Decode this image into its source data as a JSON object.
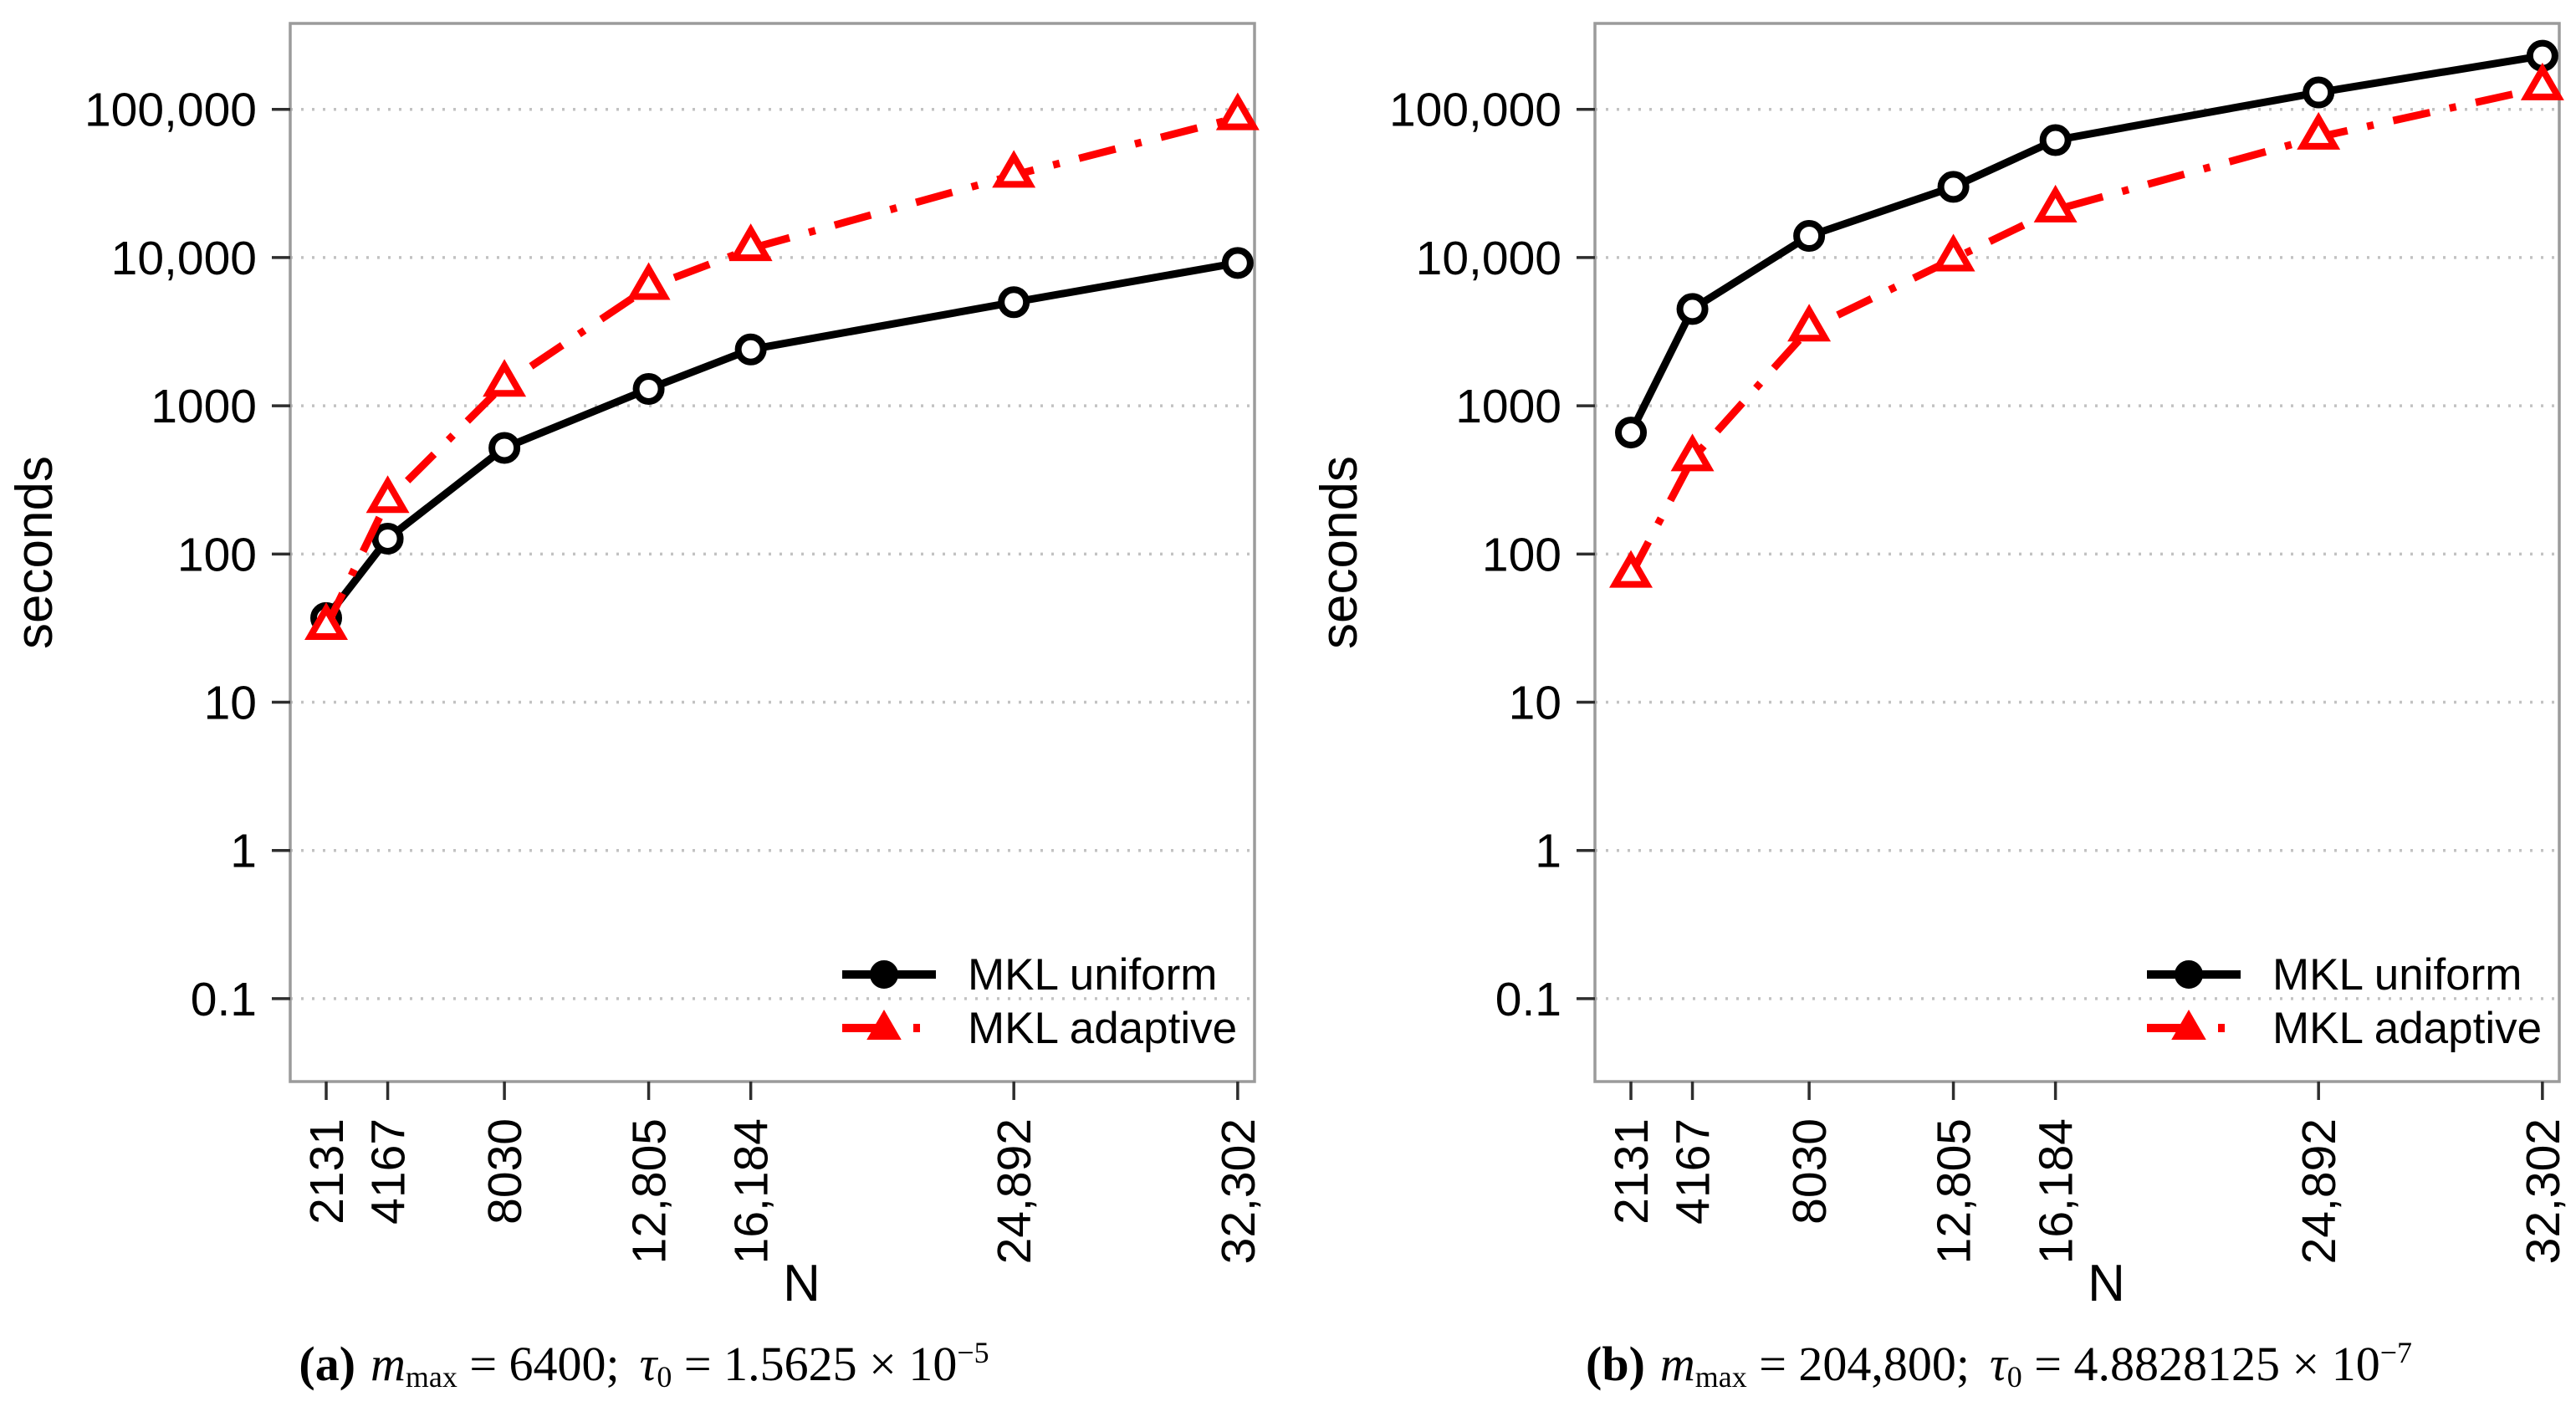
{
  "figure": {
    "background": "#ffffff",
    "colors": {
      "uniform": "#000000",
      "adaptive": "#ff0000",
      "grid": "#c2c2c2",
      "frame": "#9b9b9b",
      "tick": "#2e2e2e",
      "text": "#000000"
    }
  },
  "chart_data": [
    {
      "id": "a",
      "type": "line",
      "title": "(a) m_max = 6400; tau_0 = 1.5625 x 10^-5",
      "xlabel": "N",
      "ylabel": "seconds",
      "xscale": "linear",
      "yscale": "log",
      "grid": "horizontal-dotted",
      "legend_position": "bottom-right",
      "x": [
        2131,
        4167,
        8030,
        12805,
        16184,
        24892,
        32302
      ],
      "x_tick_labels": [
        "2131",
        "4167",
        "8030",
        "12,805",
        "16,184",
        "24,892",
        "32,302"
      ],
      "y_ticks": [
        100000,
        10000,
        1000,
        100,
        10,
        1,
        0.1
      ],
      "y_tick_labels": [
        "100,000",
        "10,000",
        "1000",
        "100",
        "10",
        "1",
        "0.1"
      ],
      "xlim": [
        940,
        32860
      ],
      "ylim": [
        0.0276,
        380000
      ],
      "series": [
        {
          "name": "MKL uniform",
          "color": "#000000",
          "line": "solid",
          "marker": "open-circle",
          "values": [
            37,
            127,
            520,
            1300,
            2400,
            5000,
            9200
          ]
        },
        {
          "name": "MKL adaptive",
          "color": "#ff0000",
          "line": "dash-dot",
          "marker": "open-triangle",
          "values": [
            32,
            230,
            1400,
            6300,
            11500,
            36000,
            88000
          ]
        }
      ]
    },
    {
      "id": "b",
      "type": "line",
      "title": "(b) m_max = 204,800; tau_0 = 4.8828125 x 10^-7",
      "xlabel": "N",
      "ylabel": "seconds",
      "xscale": "linear",
      "yscale": "log",
      "grid": "horizontal-dotted",
      "legend_position": "bottom-right",
      "x": [
        2131,
        4167,
        8030,
        12805,
        16184,
        24892,
        32302
      ],
      "x_tick_labels": [
        "2131",
        "4167",
        "8030",
        "12,805",
        "16,184",
        "24,892",
        "32,302"
      ],
      "y_ticks": [
        100000,
        10000,
        1000,
        100,
        10,
        1,
        0.1
      ],
      "y_tick_labels": [
        "100,000",
        "10,000",
        "1000",
        "100",
        "10",
        "1",
        "0.1"
      ],
      "xlim": [
        940,
        32860
      ],
      "ylim": [
        0.0276,
        380000
      ],
      "series": [
        {
          "name": "MKL uniform",
          "color": "#000000",
          "line": "solid",
          "marker": "open-circle",
          "values": [
            660,
            4500,
            14000,
            30000,
            62000,
            130000,
            230000
          ]
        },
        {
          "name": "MKL adaptive",
          "color": "#ff0000",
          "line": "dash-dot",
          "marker": "open-triangle",
          "values": [
            72,
            440,
            3300,
            9800,
            21000,
            65000,
            140000
          ]
        }
      ]
    }
  ],
  "captions": [
    {
      "tag": "(a)",
      "var1": "m",
      "sub1": "max",
      "eq1": " = 6400;",
      "var2": "τ",
      "sub2": "0",
      "eq2": " = 1.5625 × 10",
      "sup2": "−5"
    },
    {
      "tag": "(b)",
      "var1": "m",
      "sub1": "max",
      "eq1": " = 204,800;",
      "var2": "τ",
      "sub2": "0",
      "eq2": " = 4.8828125 × 10",
      "sup2": "−7"
    }
  ]
}
